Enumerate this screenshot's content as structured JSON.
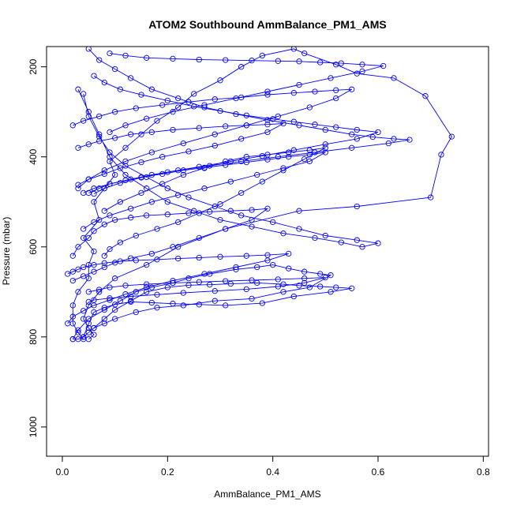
{
  "chart_data": {
    "type": "scatter",
    "title": "ATOM2 Southbound AmmBalance_PM1_AMS",
    "xlabel": "AmmBalance_PM1_AMS",
    "ylabel": "Pressure (mbar)",
    "xlim": [
      -0.03,
      0.81
    ],
    "ylim": [
      1065,
      155
    ],
    "y_reversed": true,
    "x_ticks": [
      0.0,
      0.2,
      0.4,
      0.6,
      0.8
    ],
    "x_tick_labels": [
      "0.0",
      "0.2",
      "0.4",
      "0.6",
      "0.8"
    ],
    "y_ticks": [
      200,
      400,
      600,
      800,
      1000
    ],
    "y_tick_labels": [
      "200",
      "400",
      "600",
      "800",
      "1000"
    ],
    "grid": false,
    "marker": "open-circle",
    "connect_points": true,
    "series_color": "#0000ff",
    "series": [
      {
        "x": [
          0.04,
          0.03,
          0.02,
          0.02,
          0.03,
          0.05,
          0.05,
          0.06,
          0.04,
          0.07,
          0.06,
          0.08,
          0.1,
          0.09,
          0.12,
          0.15,
          0.18,
          0.22,
          0.25,
          0.3,
          0.34,
          0.38,
          0.44,
          0.46,
          0.52,
          0.56,
          0.63,
          0.69,
          0.74,
          0.72,
          0.7,
          0.56,
          0.45,
          0.31,
          0.22,
          0.16,
          0.1,
          0.07,
          0.05,
          0.04,
          0.05,
          0.06,
          0.05
        ],
        "y": [
          805,
          790,
          770,
          730,
          700,
          670,
          640,
          610,
          580,
          540,
          500,
          470,
          440,
          410,
          380,
          350,
          320,
          290,
          260,
          230,
          200,
          175,
          160,
          170,
          195,
          215,
          225,
          265,
          355,
          395,
          490,
          510,
          520,
          560,
          600,
          640,
          670,
          700,
          730,
          760,
          780,
          795,
          805
        ]
      },
      {
        "x": [
          0.02,
          0.03,
          0.05,
          0.08,
          0.11,
          0.14,
          0.17,
          0.21,
          0.24,
          0.28,
          0.33,
          0.37,
          0.4,
          0.43,
          0.46,
          0.49,
          0.51,
          0.47,
          0.42,
          0.36,
          0.29,
          0.23,
          0.18,
          0.14,
          0.1,
          0.08,
          0.06,
          0.05,
          0.04,
          0.03,
          0.02
        ],
        "y": [
          805,
          785,
          760,
          740,
          720,
          700,
          690,
          680,
          670,
          660,
          650,
          645,
          640,
          648,
          655,
          660,
          663,
          690,
          700,
          715,
          720,
          730,
          735,
          745,
          760,
          770,
          780,
          790,
          800,
          805,
          805
        ]
      },
      {
        "x": [
          0.06,
          0.08,
          0.1,
          0.13,
          0.16,
          0.2,
          0.24,
          0.28,
          0.32,
          0.37,
          0.42,
          0.45,
          0.49,
          0.52,
          0.55,
          0.51,
          0.44,
          0.38,
          0.31,
          0.26,
          0.21,
          0.17,
          0.13,
          0.1,
          0.08,
          0.06,
          0.05,
          0.04
        ],
        "y": [
          780,
          760,
          740,
          720,
          700,
          690,
          685,
          684,
          682,
          680,
          683,
          686,
          688,
          690,
          692,
          700,
          710,
          725,
          730,
          728,
          726,
          724,
          722,
          728,
          735,
          745,
          770,
          800
        ]
      },
      {
        "x": [
          0.03,
          0.05,
          0.07,
          0.09,
          0.12,
          0.16,
          0.2,
          0.25,
          0.3,
          0.36,
          0.42,
          0.48,
          0.53,
          0.57,
          0.6,
          0.56,
          0.5,
          0.45,
          0.4,
          0.34,
          0.29,
          0.24,
          0.2,
          0.16,
          0.12,
          0.09,
          0.07,
          0.05,
          0.04
        ],
        "y": [
          250,
          300,
          350,
          400,
          440,
          470,
          500,
          520,
          540,
          555,
          570,
          580,
          590,
          600,
          592,
          585,
          575,
          560,
          545,
          530,
          510,
          490,
          470,
          445,
          420,
          390,
          355,
          310,
          260
        ]
      },
      {
        "x": [
          0.05,
          0.07,
          0.1,
          0.13,
          0.17,
          0.22,
          0.27,
          0.33,
          0.39,
          0.45,
          0.5,
          0.55,
          0.59,
          0.63,
          0.66,
          0.62,
          0.55,
          0.48,
          0.41,
          0.34,
          0.28,
          0.22,
          0.17,
          0.13,
          0.09,
          0.07,
          0.05
        ],
        "y": [
          160,
          185,
          205,
          225,
          250,
          270,
          290,
          305,
          318,
          330,
          340,
          350,
          356,
          360,
          362,
          370,
          380,
          390,
          400,
          410,
          420,
          430,
          440,
          450,
          460,
          470,
          480
        ]
      },
      {
        "x": [
          0.08,
          0.11,
          0.15,
          0.19,
          0.23,
          0.27,
          0.31,
          0.35,
          0.39,
          0.43,
          0.47,
          0.5,
          0.46,
          0.42,
          0.38,
          0.34,
          0.3,
          0.26,
          0.22,
          0.18,
          0.14,
          0.11,
          0.09,
          0.08
        ],
        "y": [
          520,
          500,
          480,
          460,
          440,
          425,
          410,
          400,
          395,
          390,
          385,
          380,
          405,
          430,
          455,
          480,
          505,
          525,
          545,
          560,
          575,
          590,
          605,
          620
        ]
      },
      {
        "x": [
          0.02,
          0.04,
          0.07,
          0.1,
          0.14,
          0.19,
          0.24,
          0.29,
          0.34,
          0.39,
          0.44,
          0.48,
          0.52,
          0.55,
          0.52,
          0.47,
          0.41,
          0.35,
          0.29,
          0.23,
          0.17,
          0.12,
          0.08,
          0.05,
          0.03
        ],
        "y": [
          330,
          320,
          310,
          300,
          292,
          285,
          278,
          272,
          268,
          262,
          258,
          255,
          252,
          250,
          270,
          290,
          310,
          330,
          350,
          370,
          390,
          410,
          430,
          450,
          470
        ]
      },
      {
        "x": [
          0.09,
          0.12,
          0.16,
          0.21,
          0.26,
          0.31,
          0.36,
          0.41,
          0.45,
          0.49,
          0.53,
          0.57,
          0.61,
          0.57,
          0.51,
          0.45,
          0.39,
          0.33,
          0.27,
          0.21,
          0.16,
          0.12,
          0.09
        ],
        "y": [
          170,
          175,
          180,
          182,
          184,
          185,
          186,
          187,
          188,
          190,
          192,
          195,
          198,
          210,
          225,
          240,
          255,
          270,
          285,
          300,
          315,
          330,
          345
        ]
      },
      {
        "x": [
          0.02,
          0.03,
          0.05,
          0.06,
          0.08,
          0.1,
          0.13,
          0.16,
          0.2,
          0.24,
          0.28,
          0.32,
          0.36,
          0.39,
          0.36,
          0.31,
          0.26,
          0.21,
          0.17,
          0.13,
          0.1,
          0.08,
          0.06,
          0.04,
          0.02
        ],
        "y": [
          620,
          600,
          580,
          565,
          550,
          540,
          535,
          530,
          528,
          525,
          522,
          520,
          518,
          515,
          540,
          560,
          580,
          600,
          615,
          625,
          635,
          645,
          655,
          665,
          675
        ]
      },
      {
        "x": [
          0.04,
          0.06,
          0.09,
          0.12,
          0.15,
          0.19,
          0.23,
          0.27,
          0.31,
          0.35,
          0.39,
          0.43,
          0.47,
          0.5,
          0.47,
          0.42,
          0.37,
          0.32,
          0.27,
          0.22,
          0.17,
          0.13,
          0.09,
          0.06,
          0.04
        ],
        "y": [
          480,
          470,
          460,
          452,
          445,
          438,
          430,
          424,
          418,
          412,
          406,
          400,
          395,
          390,
          410,
          425,
          440,
          455,
          470,
          485,
          500,
          515,
          530,
          545,
          560
        ]
      },
      {
        "x": [
          0.01,
          0.02,
          0.03,
          0.04,
          0.06,
          0.08,
          0.11,
          0.14,
          0.18,
          0.22,
          0.26,
          0.3,
          0.35,
          0.39,
          0.43,
          0.39,
          0.33,
          0.27,
          0.21,
          0.16,
          0.12,
          0.09,
          0.06,
          0.04,
          0.02,
          0.01
        ],
        "y": [
          660,
          655,
          650,
          645,
          640,
          636,
          632,
          630,
          628,
          626,
          624,
          622,
          620,
          618,
          615,
          630,
          645,
          660,
          675,
          690,
          705,
          718,
          730,
          742,
          755,
          770
        ]
      },
      {
        "x": [
          0.06,
          0.08,
          0.11,
          0.15,
          0.2,
          0.25,
          0.3,
          0.35,
          0.4,
          0.44,
          0.48,
          0.52,
          0.56,
          0.6,
          0.56,
          0.5,
          0.44,
          0.38,
          0.32,
          0.26,
          0.2,
          0.15,
          0.11,
          0.08,
          0.06
        ],
        "y": [
          220,
          235,
          250,
          262,
          275,
          288,
          298,
          308,
          316,
          322,
          328,
          334,
          340,
          345,
          360,
          372,
          385,
          398,
          410,
          422,
          434,
          446,
          458,
          470,
          482
        ]
      },
      {
        "x": [
          0.03,
          0.05,
          0.07,
          0.1,
          0.13,
          0.17,
          0.21,
          0.26,
          0.31,
          0.35,
          0.39,
          0.42,
          0.39,
          0.34,
          0.29,
          0.24,
          0.19,
          0.15,
          0.11,
          0.08,
          0.05,
          0.03
        ],
        "y": [
          380,
          372,
          365,
          358,
          350,
          345,
          340,
          336,
          332,
          330,
          328,
          326,
          345,
          360,
          375,
          388,
          400,
          412,
          425,
          438,
          450,
          462
        ]
      },
      {
        "x": [
          0.05,
          0.07,
          0.09,
          0.12,
          0.16,
          0.21,
          0.26,
          0.31,
          0.36,
          0.41,
          0.46,
          0.5,
          0.46,
          0.41,
          0.35,
          0.29,
          0.23,
          0.18,
          0.13,
          0.09,
          0.06,
          0.05
        ],
        "y": [
          700,
          695,
          690,
          686,
          683,
          680,
          678,
          676,
          674,
          672,
          670,
          668,
          680,
          688,
          694,
          698,
          702,
          706,
          710,
          714,
          718,
          722
        ]
      }
    ]
  }
}
